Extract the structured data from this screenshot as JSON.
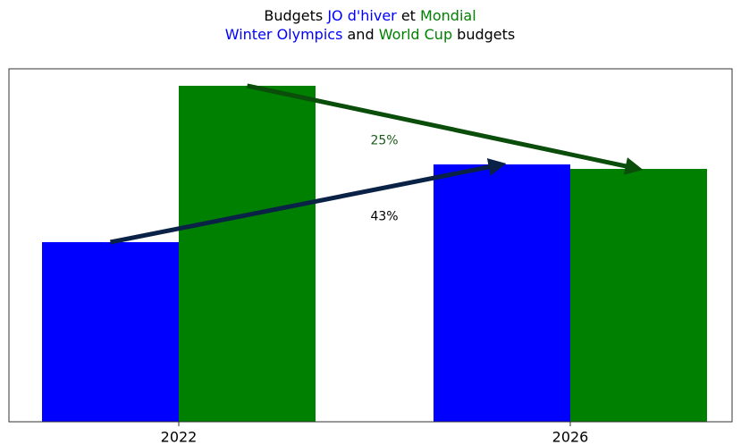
{
  "chart_data": {
    "type": "bar",
    "title_lines": [
      [
        {
          "text": "Budgets ",
          "color": "#000000"
        },
        {
          "text": "JO d'hiver",
          "color": "#0000ff"
        },
        {
          "text": " et ",
          "color": "#000000"
        },
        {
          "text": "Mondial",
          "color": "#008000"
        }
      ],
      [
        {
          "text": "Winter Olympics",
          "color": "#0000ff"
        },
        {
          "text": " and ",
          "color": "#000000"
        },
        {
          "text": "World Cup",
          "color": "#008000"
        },
        {
          "text": " budgets",
          "color": "#000000"
        }
      ]
    ],
    "categories": [
      "2022",
      "2026"
    ],
    "series": [
      {
        "name": "Winter Olympics",
        "color": "#0000ff",
        "values": [
          201,
          288
        ],
        "annotation": {
          "text": "43%",
          "color": "#000000",
          "arrow_color": "#0a2245"
        }
      },
      {
        "name": "World Cup",
        "color": "#008000",
        "values": [
          376,
          283
        ],
        "annotation": {
          "text": "25%",
          "color": "#1a5c1a",
          "arrow_color": "#0b4d0b"
        }
      }
    ],
    "ylim": [
      0,
      395
    ]
  }
}
